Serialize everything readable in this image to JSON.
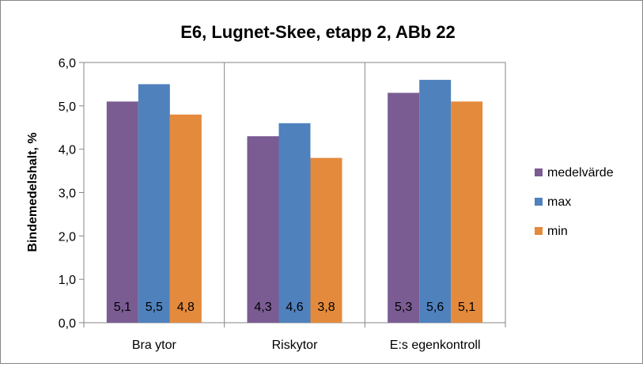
{
  "chart_data": {
    "type": "bar",
    "title": "E6, Lugnet-Skee, etapp 2, ABb 22",
    "xlabel": "",
    "ylabel": "Bindemedelshalt, %",
    "ylim": [
      0,
      6
    ],
    "yticks": [
      "0,0",
      "1,0",
      "2,0",
      "3,0",
      "4,0",
      "5,0",
      "6,0"
    ],
    "categories": [
      "Bra ytor",
      "Riskytor",
      "E:s egenkontroll"
    ],
    "series": [
      {
        "name": "medelvärde",
        "color": "#7a5c93",
        "values": [
          5.1,
          4.3,
          5.3
        ],
        "labels": [
          "5,1",
          "4,3",
          "5,3"
        ]
      },
      {
        "name": "max",
        "color": "#4f81bd",
        "values": [
          5.5,
          4.6,
          5.6
        ],
        "labels": [
          "5,5",
          "4,6",
          "5,6"
        ]
      },
      {
        "name": "min",
        "color": "#e48a3c",
        "values": [
          4.8,
          3.8,
          5.1
        ],
        "labels": [
          "4,8",
          "3,8",
          "5,1"
        ]
      }
    ],
    "legend": "right",
    "grid": false,
    "category_separators": true
  }
}
